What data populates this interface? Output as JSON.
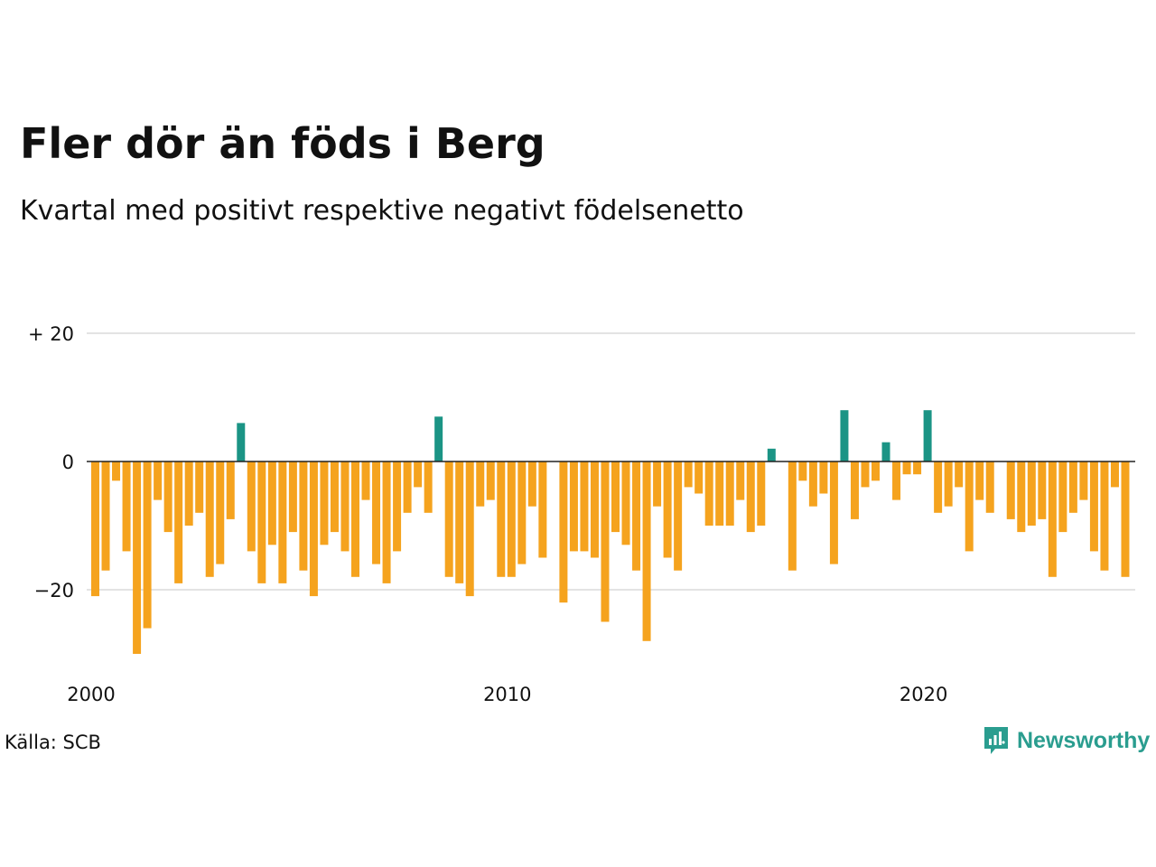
{
  "title": "Fler dör än föds i Berg",
  "subtitle": "Kvartal med positivt respektive negativt födelsenetto",
  "source": "Källa: SCB",
  "brand": "Newsworthy",
  "colors": {
    "positive": "#1b9485",
    "negative": "#f5a31e",
    "grid": "#e3e3e3",
    "zero": "#222222",
    "brand": "#2a9d8f"
  },
  "chart_data": {
    "type": "bar",
    "x_start": "2000 Q1",
    "x_ticks": [
      "2000",
      "2010",
      "2020"
    ],
    "y_ticks": [
      "+ 20",
      "0",
      "−20"
    ],
    "y_tick_values": [
      20,
      0,
      -20
    ],
    "ylim": [
      -30,
      20
    ],
    "grid": true,
    "series": [
      {
        "values": [
          -21,
          -17,
          -3,
          -14,
          -30,
          -26,
          -6,
          -11,
          -19,
          -10,
          -8,
          -18,
          -16,
          -9,
          6,
          -14,
          -19,
          -13,
          -19,
          -11,
          -17,
          -21,
          -13,
          -11,
          -14,
          -18,
          -6,
          -16,
          -19,
          -14,
          -8,
          -4,
          -8,
          7,
          -18,
          -19,
          -21,
          -7,
          -6,
          -18,
          -18,
          -16,
          -7,
          -15,
          0,
          -22,
          -14,
          -14,
          -15,
          -25,
          -11,
          -13,
          -17,
          -28,
          -7,
          -15,
          -17,
          -4,
          -5,
          -10,
          -10,
          -10,
          -6,
          -11,
          -10,
          2,
          0,
          -17,
          -3,
          -7,
          -5,
          -16,
          8,
          -9,
          -4,
          -3,
          3,
          -6,
          -2,
          -2,
          8,
          -8,
          -7,
          -4,
          -14,
          -6,
          -8,
          0,
          -9,
          -11,
          -10,
          -9,
          -18,
          -11,
          -8,
          -6,
          -14,
          -17,
          -4,
          -18
        ]
      }
    ]
  }
}
